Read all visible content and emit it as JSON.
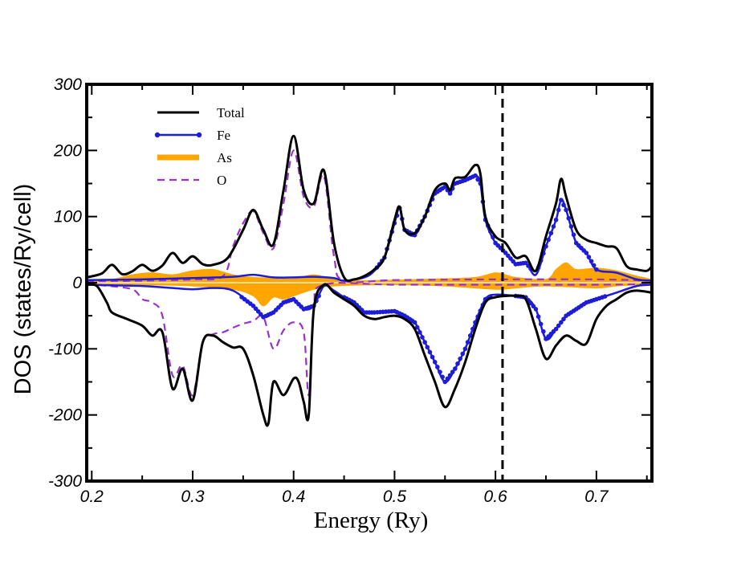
{
  "chart_data": {
    "type": "line",
    "title": "",
    "xlabel": "Energy (Ry)",
    "ylabel": "DOS (states/Ry/cell)",
    "xlim": [
      0.195,
      0.755
    ],
    "ylim": [
      -300,
      300
    ],
    "xticks": [
      0.2,
      0.3,
      0.4,
      0.5,
      0.6,
      0.7
    ],
    "xtick_labels": [
      "0.2",
      "0.3",
      "0.4",
      "0.5",
      "0.6",
      "0.7"
    ],
    "yticks": [
      -300,
      -200,
      -100,
      0,
      100,
      200,
      300
    ],
    "ytick_labels": [
      "-300",
      "-200",
      "-100",
      "0",
      "100",
      "200",
      "300"
    ],
    "fermi_level": 0.607,
    "legend": {
      "placement": "top-left",
      "entries": [
        "Total",
        "Fe",
        "As",
        "O"
      ]
    },
    "series": [
      {
        "name": "Total",
        "color": "#000000",
        "style": "solid",
        "up": [
          [
            0.195,
            8
          ],
          [
            0.21,
            14
          ],
          [
            0.22,
            27
          ],
          [
            0.23,
            13
          ],
          [
            0.24,
            17
          ],
          [
            0.25,
            27
          ],
          [
            0.26,
            18
          ],
          [
            0.27,
            26
          ],
          [
            0.28,
            45
          ],
          [
            0.29,
            30
          ],
          [
            0.3,
            40
          ],
          [
            0.31,
            28
          ],
          [
            0.32,
            27
          ],
          [
            0.335,
            38
          ],
          [
            0.35,
            80
          ],
          [
            0.36,
            110
          ],
          [
            0.37,
            80
          ],
          [
            0.38,
            58
          ],
          [
            0.39,
            140
          ],
          [
            0.4,
            222
          ],
          [
            0.41,
            140
          ],
          [
            0.42,
            120
          ],
          [
            0.43,
            170
          ],
          [
            0.44,
            60
          ],
          [
            0.45,
            8
          ],
          [
            0.46,
            5
          ],
          [
            0.47,
            10
          ],
          [
            0.48,
            20
          ],
          [
            0.49,
            38
          ],
          [
            0.5,
            95
          ],
          [
            0.505,
            115
          ],
          [
            0.51,
            80
          ],
          [
            0.52,
            75
          ],
          [
            0.53,
            100
          ],
          [
            0.54,
            140
          ],
          [
            0.55,
            150
          ],
          [
            0.555,
            140
          ],
          [
            0.56,
            158
          ],
          [
            0.57,
            160
          ],
          [
            0.58,
            178
          ],
          [
            0.585,
            165
          ],
          [
            0.59,
            100
          ],
          [
            0.6,
            70
          ],
          [
            0.61,
            60
          ],
          [
            0.62,
            38
          ],
          [
            0.63,
            40
          ],
          [
            0.64,
            18
          ],
          [
            0.65,
            70
          ],
          [
            0.66,
            120
          ],
          [
            0.665,
            157
          ],
          [
            0.67,
            130
          ],
          [
            0.68,
            80
          ],
          [
            0.69,
            65
          ],
          [
            0.7,
            60
          ],
          [
            0.71,
            55
          ],
          [
            0.72,
            52
          ],
          [
            0.73,
            25
          ],
          [
            0.74,
            20
          ],
          [
            0.75,
            18
          ],
          [
            0.755,
            25
          ]
        ],
        "down": [
          [
            0.195,
            -3
          ],
          [
            0.205,
            -5
          ],
          [
            0.215,
            -30
          ],
          [
            0.22,
            -45
          ],
          [
            0.235,
            -55
          ],
          [
            0.25,
            -65
          ],
          [
            0.26,
            -80
          ],
          [
            0.27,
            -75
          ],
          [
            0.28,
            -160
          ],
          [
            0.29,
            -130
          ],
          [
            0.3,
            -178
          ],
          [
            0.31,
            -90
          ],
          [
            0.32,
            -80
          ],
          [
            0.33,
            -90
          ],
          [
            0.34,
            -98
          ],
          [
            0.35,
            -100
          ],
          [
            0.36,
            -140
          ],
          [
            0.37,
            -200
          ],
          [
            0.375,
            -213
          ],
          [
            0.38,
            -150
          ],
          [
            0.39,
            -170
          ],
          [
            0.4,
            -145
          ],
          [
            0.405,
            -150
          ],
          [
            0.41,
            -180
          ],
          [
            0.415,
            -200
          ],
          [
            0.42,
            -40
          ],
          [
            0.43,
            -3
          ],
          [
            0.44,
            -15
          ],
          [
            0.45,
            -25
          ],
          [
            0.46,
            -35
          ],
          [
            0.47,
            -50
          ],
          [
            0.48,
            -55
          ],
          [
            0.49,
            -52
          ],
          [
            0.5,
            -50
          ],
          [
            0.51,
            -55
          ],
          [
            0.52,
            -70
          ],
          [
            0.53,
            -110
          ],
          [
            0.54,
            -150
          ],
          [
            0.55,
            -188
          ],
          [
            0.56,
            -160
          ],
          [
            0.57,
            -120
          ],
          [
            0.58,
            -70
          ],
          [
            0.59,
            -30
          ],
          [
            0.6,
            -22
          ],
          [
            0.61,
            -20
          ],
          [
            0.62,
            -20
          ],
          [
            0.63,
            -25
          ],
          [
            0.64,
            -70
          ],
          [
            0.65,
            -115
          ],
          [
            0.66,
            -95
          ],
          [
            0.67,
            -80
          ],
          [
            0.68,
            -88
          ],
          [
            0.69,
            -92
          ],
          [
            0.7,
            -55
          ],
          [
            0.71,
            -35
          ],
          [
            0.72,
            -25
          ],
          [
            0.73,
            -15
          ],
          [
            0.74,
            -12
          ],
          [
            0.755,
            -15
          ]
        ]
      },
      {
        "name": "Fe",
        "color": "#1c1cd9",
        "style": "solid-markers",
        "up": [
          [
            0.195,
            4
          ],
          [
            0.25,
            5
          ],
          [
            0.3,
            7
          ],
          [
            0.34,
            9
          ],
          [
            0.36,
            12
          ],
          [
            0.38,
            8
          ],
          [
            0.4,
            8
          ],
          [
            0.42,
            9
          ],
          [
            0.44,
            7
          ],
          [
            0.45,
            3
          ],
          [
            0.47,
            8
          ],
          [
            0.48,
            18
          ],
          [
            0.49,
            38
          ],
          [
            0.5,
            90
          ],
          [
            0.505,
            113
          ],
          [
            0.51,
            80
          ],
          [
            0.52,
            72
          ],
          [
            0.53,
            100
          ],
          [
            0.54,
            135
          ],
          [
            0.55,
            145
          ],
          [
            0.555,
            135
          ],
          [
            0.56,
            150
          ],
          [
            0.57,
            155
          ],
          [
            0.58,
            162
          ],
          [
            0.585,
            150
          ],
          [
            0.59,
            95
          ],
          [
            0.6,
            60
          ],
          [
            0.61,
            45
          ],
          [
            0.62,
            28
          ],
          [
            0.63,
            30
          ],
          [
            0.64,
            12
          ],
          [
            0.65,
            55
          ],
          [
            0.66,
            95
          ],
          [
            0.665,
            125
          ],
          [
            0.67,
            110
          ],
          [
            0.68,
            60
          ],
          [
            0.69,
            45
          ],
          [
            0.7,
            20
          ],
          [
            0.72,
            15
          ],
          [
            0.74,
            5
          ],
          [
            0.755,
            3
          ]
        ],
        "down": [
          [
            0.195,
            -3
          ],
          [
            0.22,
            -4
          ],
          [
            0.25,
            -5
          ],
          [
            0.28,
            -8
          ],
          [
            0.3,
            -10
          ],
          [
            0.32,
            -8
          ],
          [
            0.34,
            -12
          ],
          [
            0.36,
            -35
          ],
          [
            0.37,
            -52
          ],
          [
            0.38,
            -45
          ],
          [
            0.39,
            -30
          ],
          [
            0.4,
            -25
          ],
          [
            0.41,
            -40
          ],
          [
            0.42,
            -35
          ],
          [
            0.43,
            -5
          ],
          [
            0.44,
            -12
          ],
          [
            0.45,
            -22
          ],
          [
            0.46,
            -30
          ],
          [
            0.47,
            -45
          ],
          [
            0.48,
            -45
          ],
          [
            0.5,
            -43
          ],
          [
            0.51,
            -50
          ],
          [
            0.52,
            -60
          ],
          [
            0.53,
            -90
          ],
          [
            0.54,
            -120
          ],
          [
            0.55,
            -150
          ],
          [
            0.56,
            -130
          ],
          [
            0.57,
            -100
          ],
          [
            0.58,
            -60
          ],
          [
            0.59,
            -25
          ],
          [
            0.6,
            -18
          ],
          [
            0.62,
            -20
          ],
          [
            0.63,
            -22
          ],
          [
            0.64,
            -40
          ],
          [
            0.65,
            -85
          ],
          [
            0.66,
            -70
          ],
          [
            0.67,
            -50
          ],
          [
            0.68,
            -40
          ],
          [
            0.69,
            -30
          ],
          [
            0.7,
            -25
          ],
          [
            0.72,
            -15
          ],
          [
            0.74,
            -5
          ],
          [
            0.755,
            -3
          ]
        ]
      },
      {
        "name": "As",
        "color": "#ffa500",
        "style": "filled",
        "up": [
          [
            0.195,
            2
          ],
          [
            0.22,
            5
          ],
          [
            0.24,
            12
          ],
          [
            0.26,
            15
          ],
          [
            0.28,
            12
          ],
          [
            0.3,
            18
          ],
          [
            0.32,
            20
          ],
          [
            0.34,
            12
          ],
          [
            0.36,
            8
          ],
          [
            0.38,
            7
          ],
          [
            0.4,
            6
          ],
          [
            0.42,
            12
          ],
          [
            0.44,
            5
          ],
          [
            0.46,
            3
          ],
          [
            0.5,
            4
          ],
          [
            0.55,
            6
          ],
          [
            0.58,
            8
          ],
          [
            0.6,
            15
          ],
          [
            0.61,
            12
          ],
          [
            0.62,
            8
          ],
          [
            0.65,
            5
          ],
          [
            0.66,
            20
          ],
          [
            0.67,
            30
          ],
          [
            0.68,
            20
          ],
          [
            0.7,
            22
          ],
          [
            0.72,
            18
          ],
          [
            0.74,
            10
          ],
          [
            0.755,
            5
          ]
        ],
        "down": [
          [
            0.195,
            -1
          ],
          [
            0.25,
            -3
          ],
          [
            0.3,
            -5
          ],
          [
            0.34,
            -10
          ],
          [
            0.36,
            -20
          ],
          [
            0.37,
            -35
          ],
          [
            0.38,
            -22
          ],
          [
            0.39,
            -25
          ],
          [
            0.4,
            -20
          ],
          [
            0.42,
            -10
          ],
          [
            0.44,
            -5
          ],
          [
            0.5,
            -3
          ],
          [
            0.55,
            -5
          ],
          [
            0.6,
            -10
          ],
          [
            0.62,
            -8
          ],
          [
            0.65,
            -5
          ],
          [
            0.7,
            -8
          ],
          [
            0.72,
            -5
          ],
          [
            0.755,
            -2
          ]
        ]
      },
      {
        "name": "O",
        "color": "#9b32c8",
        "style": "dashed",
        "up": [
          [
            0.195,
            2
          ],
          [
            0.25,
            3
          ],
          [
            0.3,
            5
          ],
          [
            0.33,
            10
          ],
          [
            0.34,
            55
          ],
          [
            0.35,
            90
          ],
          [
            0.36,
            108
          ],
          [
            0.37,
            75
          ],
          [
            0.38,
            52
          ],
          [
            0.39,
            120
          ],
          [
            0.4,
            200
          ],
          [
            0.41,
            130
          ],
          [
            0.42,
            115
          ],
          [
            0.43,
            162
          ],
          [
            0.44,
            40
          ],
          [
            0.45,
            3
          ],
          [
            0.5,
            4
          ],
          [
            0.6,
            5
          ],
          [
            0.7,
            5
          ],
          [
            0.755,
            3
          ]
        ],
        "down": [
          [
            0.195,
            -3
          ],
          [
            0.21,
            -4
          ],
          [
            0.24,
            -10
          ],
          [
            0.25,
            -25
          ],
          [
            0.26,
            -30
          ],
          [
            0.27,
            -50
          ],
          [
            0.28,
            -140
          ],
          [
            0.29,
            -125
          ],
          [
            0.3,
            -170
          ],
          [
            0.31,
            -90
          ],
          [
            0.32,
            -78
          ],
          [
            0.33,
            -75
          ],
          [
            0.34,
            -68
          ],
          [
            0.35,
            -62
          ],
          [
            0.36,
            -58
          ],
          [
            0.37,
            -52
          ],
          [
            0.38,
            -100
          ],
          [
            0.39,
            -72
          ],
          [
            0.4,
            -60
          ],
          [
            0.41,
            -75
          ],
          [
            0.415,
            -170
          ],
          [
            0.42,
            -40
          ],
          [
            0.43,
            -3
          ],
          [
            0.5,
            -3
          ],
          [
            0.6,
            -3
          ],
          [
            0.7,
            -3
          ],
          [
            0.755,
            -2
          ]
        ]
      }
    ]
  }
}
